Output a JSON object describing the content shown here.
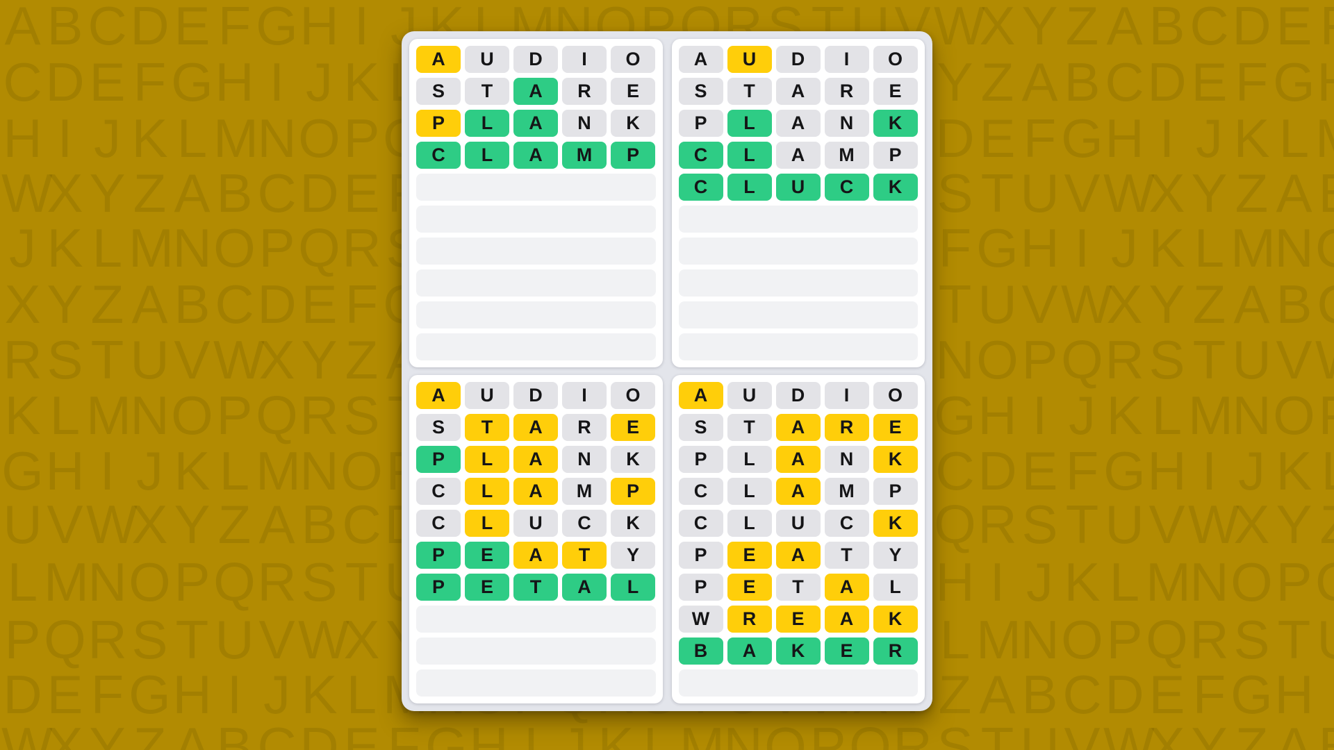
{
  "colors": {
    "page_background": "#b28b02",
    "watermark_letters": "rgba(0,0,0,0.085)",
    "card_background": "#e3e5eb",
    "panel_background": "#ffffff",
    "tile_yellow": "#ffce0a",
    "tile_green": "#2ecc85",
    "tile_gray": "#e3e3e7",
    "empty_row": "#f1f2f4",
    "tile_text": "#151517"
  },
  "background": {
    "row_tops": [
      -5,
      76,
      157,
      236,
      315,
      396,
      476,
      556,
      636,
      713,
      796,
      879,
      958,
      1033
    ],
    "rows": [
      "ABCDEFGHIJKLMNOPQRSTUVWXYZABCDEF",
      "CDEFGHIJKLMNOPQRSTUVWXYZABCDEFGH",
      "HIJKLMNOPQRSTUVWXYZABCDEFGHIJKLM",
      "WXYZABCDEFGHIJKLMNOPQRSTUVWXYZAB",
      "JKLMNOPQRSTUVWXYZABCDEFGHIJKLMNO",
      "XYZABCDEFGHIJKLMNOPQRSTUVWXYZABC",
      "RSTUVWXYZABCDEFGHIJKLMNOPQRSTUVW",
      "KLMNOPQRSTUVWXYZABCDEFGHIJKLMNOP",
      "GHIJKLMNOPQRSTUVWXYZABCDEFGHIJKL",
      "UVWXYZABCDEFGHIJKLMNOPQRSTUVWXYZ",
      "LMNOPQRSTUVWXYZABCDEFGHIJKLMNOPQ",
      "PQRSTUVWXYZABCDEFGHIJKLMNOPQRSTU",
      "DEFGHIJKLMNOPQRSTUVWXYZABCDEFGHI",
      "WXYZABCDEFGHIJKLMNOPQRSTUVWXYZAB"
    ]
  },
  "board": {
    "grids": [
      {
        "position": "top-left",
        "guesses": [
          {
            "word": "AUDIO",
            "states": [
              "yellow",
              "gray",
              "gray",
              "gray",
              "gray"
            ]
          },
          {
            "word": "STARE",
            "states": [
              "gray",
              "gray",
              "green",
              "gray",
              "gray"
            ]
          },
          {
            "word": "PLANK",
            "states": [
              "yellow",
              "green",
              "green",
              "gray",
              "gray"
            ]
          },
          {
            "word": "CLAMP",
            "states": [
              "green",
              "green",
              "green",
              "green",
              "green"
            ]
          }
        ],
        "empty_rows": 6
      },
      {
        "position": "top-right",
        "guesses": [
          {
            "word": "AUDIO",
            "states": [
              "gray",
              "yellow",
              "gray",
              "gray",
              "gray"
            ]
          },
          {
            "word": "STARE",
            "states": [
              "gray",
              "gray",
              "gray",
              "gray",
              "gray"
            ]
          },
          {
            "word": "PLANK",
            "states": [
              "gray",
              "green",
              "gray",
              "gray",
              "green"
            ]
          },
          {
            "word": "CLAMP",
            "states": [
              "green",
              "green",
              "gray",
              "gray",
              "gray"
            ]
          },
          {
            "word": "CLUCK",
            "states": [
              "green",
              "green",
              "green",
              "green",
              "green"
            ]
          }
        ],
        "empty_rows": 5
      },
      {
        "position": "bottom-left",
        "guesses": [
          {
            "word": "AUDIO",
            "states": [
              "yellow",
              "gray",
              "gray",
              "gray",
              "gray"
            ]
          },
          {
            "word": "STARE",
            "states": [
              "gray",
              "yellow",
              "yellow",
              "gray",
              "yellow"
            ]
          },
          {
            "word": "PLANK",
            "states": [
              "green",
              "yellow",
              "yellow",
              "gray",
              "gray"
            ]
          },
          {
            "word": "CLAMP",
            "states": [
              "gray",
              "yellow",
              "yellow",
              "gray",
              "yellow"
            ]
          },
          {
            "word": "CLUCK",
            "states": [
              "gray",
              "yellow",
              "gray",
              "gray",
              "gray"
            ]
          },
          {
            "word": "PEATY",
            "states": [
              "green",
              "green",
              "yellow",
              "yellow",
              "gray"
            ]
          },
          {
            "word": "PETAL",
            "states": [
              "green",
              "green",
              "green",
              "green",
              "green"
            ]
          }
        ],
        "empty_rows": 3
      },
      {
        "position": "bottom-right",
        "guesses": [
          {
            "word": "AUDIO",
            "states": [
              "yellow",
              "gray",
              "gray",
              "gray",
              "gray"
            ]
          },
          {
            "word": "STARE",
            "states": [
              "gray",
              "gray",
              "yellow",
              "yellow",
              "yellow"
            ]
          },
          {
            "word": "PLANK",
            "states": [
              "gray",
              "gray",
              "yellow",
              "gray",
              "yellow"
            ]
          },
          {
            "word": "CLAMP",
            "states": [
              "gray",
              "gray",
              "yellow",
              "gray",
              "gray"
            ]
          },
          {
            "word": "CLUCK",
            "states": [
              "gray",
              "gray",
              "gray",
              "gray",
              "yellow"
            ]
          },
          {
            "word": "PEATY",
            "states": [
              "gray",
              "yellow",
              "yellow",
              "gray",
              "gray"
            ]
          },
          {
            "word": "PETAL",
            "states": [
              "gray",
              "yellow",
              "gray",
              "yellow",
              "gray"
            ]
          },
          {
            "word": "WREAK",
            "states": [
              "gray",
              "yellow",
              "yellow",
              "yellow",
              "yellow"
            ]
          },
          {
            "word": "BAKER",
            "states": [
              "green",
              "green",
              "green",
              "green",
              "green"
            ]
          }
        ],
        "empty_rows": 1
      }
    ]
  }
}
